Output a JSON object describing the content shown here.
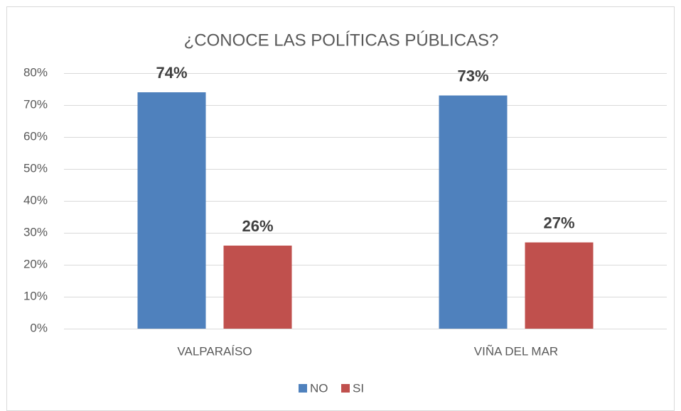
{
  "chart_data": {
    "type": "bar",
    "title": "¿CONOCE LAS POLÍTICAS PÚBLICAS?",
    "categories": [
      "VALPARAÍSO",
      "VIÑA DEL MAR"
    ],
    "series": [
      {
        "name": "NO",
        "color": "#4f81bd",
        "values": [
          74,
          73
        ],
        "value_labels": [
          "74%",
          "73%"
        ]
      },
      {
        "name": "SI",
        "color": "#c0504d",
        "values": [
          26,
          27
        ],
        "value_labels": [
          "26%",
          "27%"
        ]
      }
    ],
    "ylim": [
      0,
      80
    ],
    "yticks": [
      {
        "value": 0,
        "label": "0%"
      },
      {
        "value": 10,
        "label": "10%"
      },
      {
        "value": 20,
        "label": "20%"
      },
      {
        "value": 30,
        "label": "30%"
      },
      {
        "value": 40,
        "label": "40%"
      },
      {
        "value": 50,
        "label": "50%"
      },
      {
        "value": 60,
        "label": "60%"
      },
      {
        "value": 70,
        "label": "70%"
      },
      {
        "value": 80,
        "label": "80%"
      }
    ],
    "grid": true,
    "legend": "bottom"
  }
}
